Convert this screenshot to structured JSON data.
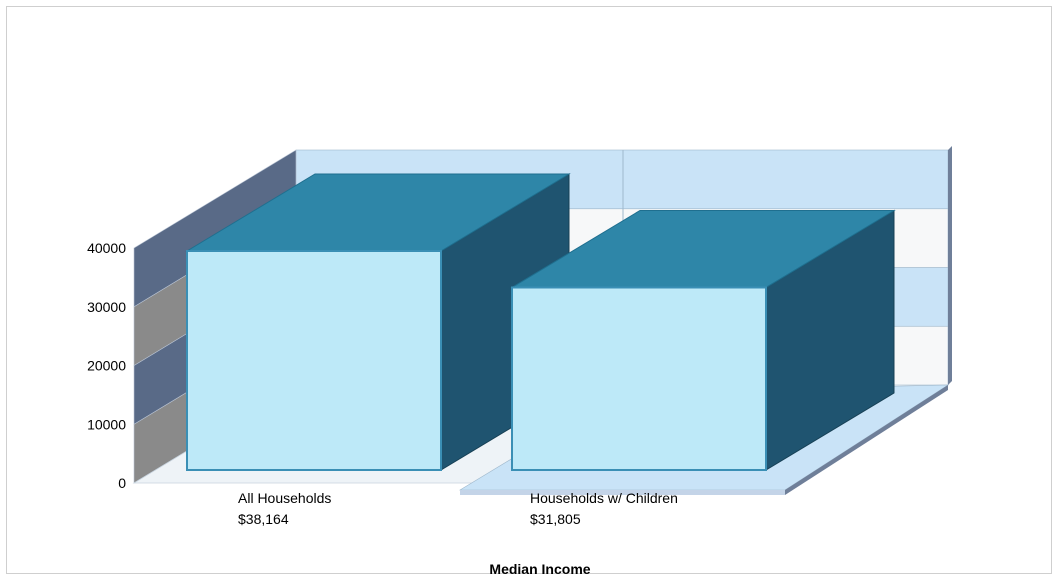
{
  "chart_data": {
    "type": "bar",
    "title": "",
    "xlabel": "Median Income",
    "ylabel": "",
    "ylim": [
      0,
      40000
    ],
    "yticks": [
      "0",
      "10000",
      "20000",
      "30000",
      "40000"
    ],
    "categories": [
      "All Households",
      "Households w/ Children"
    ],
    "value_labels": [
      "$38,164",
      "$31,805"
    ],
    "values": [
      38164,
      31805
    ],
    "style": "3d",
    "colors": {
      "bar_front": "#bde9f8",
      "bar_top": "#2e86a8",
      "bar_side": "#1f5470",
      "wall_stripe_a": "#c9e3f7",
      "wall_stripe_b": "#f7f8f9",
      "left_wall_dark": "#596a87",
      "left_wall_gray": "#8a8a8a"
    },
    "grid": true,
    "legend": "none"
  }
}
